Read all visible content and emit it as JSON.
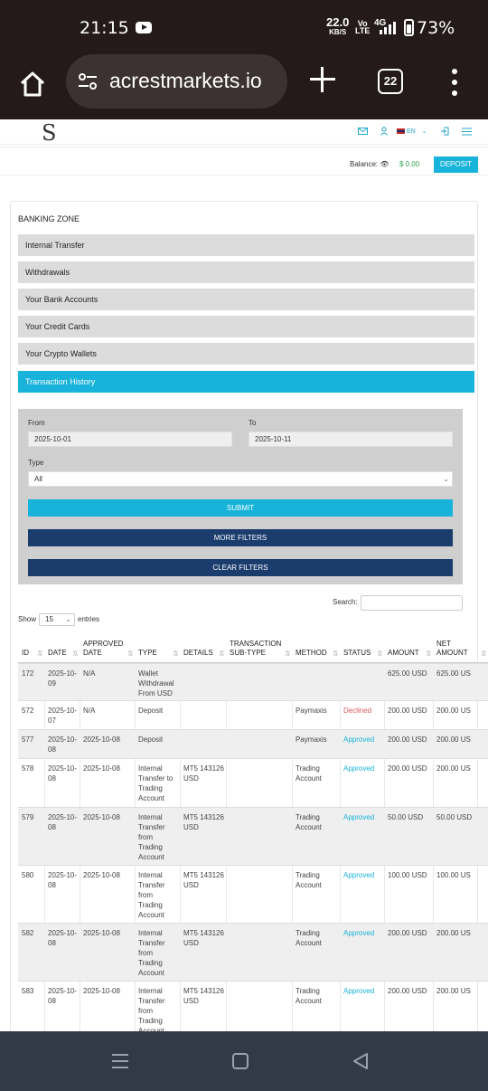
{
  "status_bar": {
    "time": "21:15",
    "net_speed": "22.0",
    "net_unit": "KB/S",
    "volte_top": "Vo",
    "volte_bottom": "LTE",
    "network": "4G",
    "battery": "73%",
    "icons": [
      "youtube-icon",
      "signal-icon",
      "battery-icon"
    ]
  },
  "browser": {
    "url": "acrestmarkets.io",
    "tab_count": "22",
    "icons": [
      "home-icon",
      "tune-icon",
      "plus-icon",
      "tabs-icon",
      "more-icon"
    ]
  },
  "header": {
    "logo": "S",
    "language": "EN",
    "icons": [
      "mail-icon",
      "user-icon",
      "flag-icon",
      "chevron-down-icon",
      "logout-icon",
      "hamburger-icon"
    ]
  },
  "balance": {
    "label": "Balance:",
    "amount": "$ 0.00",
    "deposit_label": "DEPOSIT"
  },
  "banking": {
    "title": "BANKING ZONE",
    "items": [
      {
        "label": "Internal Transfer"
      },
      {
        "label": "Withdrawals"
      },
      {
        "label": "Your Bank Accounts"
      },
      {
        "label": "Your Credit Cards"
      },
      {
        "label": "Your Crypto Wallets"
      },
      {
        "label": "Transaction History"
      }
    ],
    "active_index": 5
  },
  "filters": {
    "from_label": "From",
    "from_value": "2025-10-01",
    "to_label": "To",
    "to_value": "2025-10-11",
    "type_label": "Type",
    "type_value": "All",
    "submit_label": "SUBMIT",
    "more_filters_label": "MORE FILTERS",
    "clear_filters_label": "CLEAR FILTERS"
  },
  "table_controls": {
    "show_label": "Show",
    "length_value": "15",
    "entries_label": "entries",
    "search_label": "Search:"
  },
  "table": {
    "columns": [
      "ID",
      "DATE",
      "APPROVED DATE",
      "TYPE",
      "DETAILS",
      "TRANSACTION SUB-TYPE",
      "METHOD",
      "STATUS",
      "AMOUNT",
      "NET AMOUNT"
    ],
    "rows": [
      {
        "id": "172",
        "date": "2025-10-09",
        "approved": "N/A",
        "type": "Wallet Withdrawal From USD",
        "details": "",
        "subtype": "",
        "method": "",
        "status": "",
        "amount": "625.00 USD",
        "net": "625.00 US"
      },
      {
        "id": "572",
        "date": "2025-10-07",
        "approved": "N/A",
        "type": "Deposit",
        "details": "",
        "subtype": "",
        "method": "Paymaxis",
        "status": "Declined",
        "amount": "200.00 USD",
        "net": "200.00 US"
      },
      {
        "id": "577",
        "date": "2025-10-08",
        "approved": "2025-10-08",
        "type": "Deposit",
        "details": "",
        "subtype": "",
        "method": "Paymaxis",
        "status": "Approved",
        "amount": "200.00 USD",
        "net": "200.00 US"
      },
      {
        "id": "578",
        "date": "2025-10-08",
        "approved": "2025-10-08",
        "type": "Internal Transfer to Trading Account",
        "details": "MT5 143126 USD",
        "subtype": "",
        "method": "Trading Account",
        "status": "Approved",
        "amount": "200.00 USD",
        "net": "200.00 US"
      },
      {
        "id": "579",
        "date": "2025-10-08",
        "approved": "2025-10-08",
        "type": "Internal Transfer from Trading Account",
        "details": "MT5 143126 USD",
        "subtype": "",
        "method": "Trading Account",
        "status": "Approved",
        "amount": "50.00 USD",
        "net": "50.00 USD"
      },
      {
        "id": "580",
        "date": "2025-10-08",
        "approved": "2025-10-08",
        "type": "Internal Transfer from Trading Account",
        "details": "MT5 143126 USD",
        "subtype": "",
        "method": "Trading Account",
        "status": "Approved",
        "amount": "100.00 USD",
        "net": "100.00 US"
      },
      {
        "id": "582",
        "date": "2025-10-08",
        "approved": "2025-10-08",
        "type": "Internal Transfer from Trading Account",
        "details": "MT5 143126 USD",
        "subtype": "",
        "method": "Trading Account",
        "status": "Approved",
        "amount": "200.00 USD",
        "net": "200.00 US"
      },
      {
        "id": "583",
        "date": "2025-10-08",
        "approved": "2025-10-08",
        "type": "Internal Transfer from Trading Account",
        "details": "MT5 143126 USD",
        "subtype": "",
        "method": "Trading Account",
        "status": "Approved",
        "amount": "200.00 USD",
        "net": "200.00 US"
      }
    ]
  },
  "colors": {
    "accent": "#17b3db",
    "navy": "#1a3d6e",
    "approved": "#17b3db",
    "declined": "#e05a5a",
    "balance_green": "#2fa84f"
  }
}
